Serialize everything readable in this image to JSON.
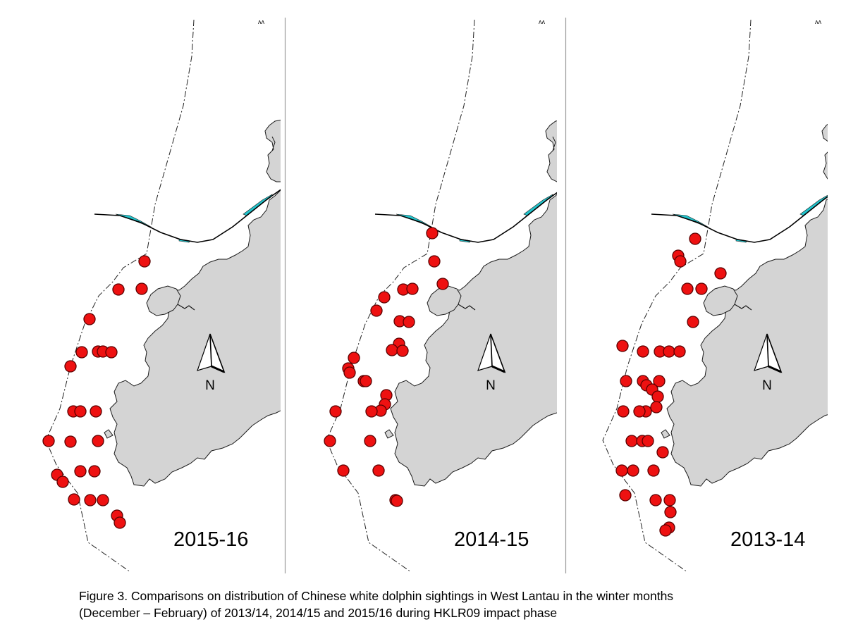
{
  "figure": {
    "panels": [
      {
        "season_label": "2015-16",
        "corner_mark": "ᴧᴧ",
        "north_label": "N",
        "sightings": [
          [
            205,
            371
          ],
          [
            168,
            411
          ],
          [
            201,
            410
          ],
          [
            127,
            453
          ],
          [
            116,
            500
          ],
          [
            139,
            499
          ],
          [
            146,
            499
          ],
          [
            158,
            500
          ],
          [
            100,
            520
          ],
          [
            104,
            584
          ],
          [
            114,
            584
          ],
          [
            136,
            584
          ],
          [
            69,
            626
          ],
          [
            100,
            627
          ],
          [
            139,
            626
          ],
          [
            81,
            674
          ],
          [
            89,
            684
          ],
          [
            114,
            669
          ],
          [
            134,
            669
          ],
          [
            105,
            709
          ],
          [
            128,
            710
          ],
          [
            146,
            710
          ],
          [
            166,
            732
          ],
          [
            170,
            742
          ]
        ]
      },
      {
        "season_label": "2014-15",
        "corner_mark": "ᴧᴧ",
        "north_label": "N",
        "sightings": [
          [
            613,
            331
          ],
          [
            616,
            371
          ],
          [
            628,
            403
          ],
          [
            572,
            411
          ],
          [
            585,
            410
          ],
          [
            545,
            422
          ],
          [
            534,
            441
          ],
          [
            567,
            456
          ],
          [
            580,
            457
          ],
          [
            566,
            488
          ],
          [
            556,
            497
          ],
          [
            571,
            498
          ],
          [
            502,
            508
          ],
          [
            494,
            523
          ],
          [
            496,
            529
          ],
          [
            516,
            541
          ],
          [
            519,
            541
          ],
          [
            548,
            561
          ],
          [
            546,
            574
          ],
          [
            540,
            583
          ],
          [
            527,
            584
          ],
          [
            476,
            584
          ],
          [
            525,
            626
          ],
          [
            468,
            626
          ],
          [
            537,
            668
          ],
          [
            487,
            668
          ],
          [
            561,
            710
          ],
          [
            563,
            711
          ]
        ]
      },
      {
        "season_label": "2013-14",
        "corner_mark": "ᴧᴧ",
        "north_label": "N",
        "sightings": [
          [
            986,
            339
          ],
          [
            962,
            363
          ],
          [
            965,
            371
          ],
          [
            1022,
            388
          ],
          [
            975,
            410
          ],
          [
            995,
            410
          ],
          [
            983,
            457
          ],
          [
            883,
            491
          ],
          [
            912,
            499
          ],
          [
            936,
            499
          ],
          [
            949,
            499
          ],
          [
            964,
            499
          ],
          [
            888,
            541
          ],
          [
            912,
            541
          ],
          [
            935,
            541
          ],
          [
            917,
            547
          ],
          [
            925,
            553
          ],
          [
            933,
            563
          ],
          [
            931,
            578
          ],
          [
            916,
            584
          ],
          [
            907,
            584
          ],
          [
            884,
            584
          ],
          [
            896,
            626
          ],
          [
            911,
            626
          ],
          [
            919,
            626
          ],
          [
            940,
            642
          ],
          [
            882,
            668
          ],
          [
            898,
            668
          ],
          [
            927,
            668
          ],
          [
            887,
            703
          ],
          [
            930,
            710
          ],
          [
            950,
            710
          ],
          [
            951,
            727
          ],
          [
            949,
            749
          ],
          [
            944,
            753
          ]
        ]
      }
    ]
  },
  "caption": {
    "line1": "Figure 3.  Comparisons on distribution of Chinese white dolphin sightings in West Lantau in the winter months",
    "line2": "(December – February) of 2013/14, 2014/15 and 2015/16 during HKLR09 impact phase"
  },
  "colors": {
    "land": "#d4d4d4",
    "land_stroke": "#1a1a1a",
    "sighting_fill": "#ee1111",
    "sighting_stroke": "#5a0000",
    "bridge_fill": "#22c4cc",
    "boundary": "#222222",
    "divider": "#999999"
  }
}
